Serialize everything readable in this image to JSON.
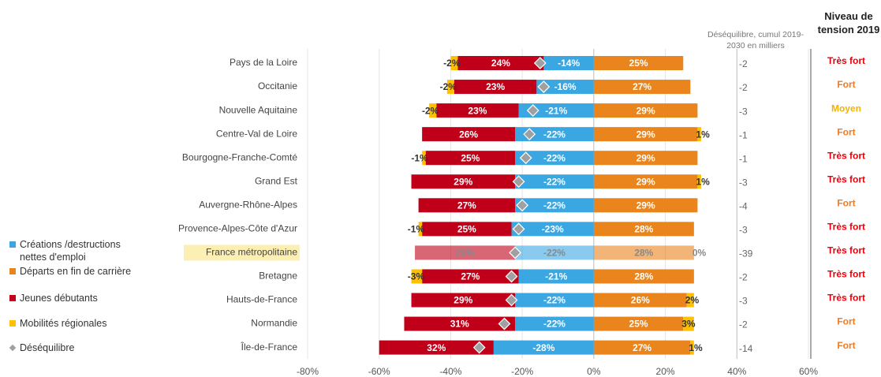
{
  "chart_data": {
    "type": "bar",
    "orientation": "horizontal",
    "stacked": true,
    "categories": [
      "Pays de la Loire",
      "Occitanie",
      "Nouvelle Aquitaine",
      "Centre-Val de Loire",
      "Bourgogne-Franche-Comté",
      "Grand Est",
      "Auvergne-Rhône-Alpes",
      "Provence-Alpes-Côte d'Azur",
      "France métropolitaine",
      "Bretagne",
      "Hauts-de-France",
      "Normandie",
      "Île-de-France"
    ],
    "highlight_index": 8,
    "series": [
      {
        "name": "Créations /destructions nettes d'emploi",
        "color": "#3aa6e2",
        "values": [
          -14,
          -16,
          -21,
          -22,
          -22,
          -22,
          -22,
          -23,
          -22,
          -21,
          -22,
          -22,
          -28
        ],
        "value_labels": [
          "-14%",
          "-16%",
          "-21%",
          "-22%",
          "-22%",
          "-22%",
          "-22%",
          "-23%",
          "-22%",
          "-21%",
          "-22%",
          "-22%",
          "-28%"
        ]
      },
      {
        "name": "Départs en fin de carrière",
        "color": "#ea841c",
        "values": [
          25,
          27,
          29,
          29,
          29,
          29,
          29,
          28,
          28,
          28,
          26,
          25,
          27
        ],
        "value_labels": [
          "25%",
          "27%",
          "29%",
          "29%",
          "29%",
          "29%",
          "29%",
          "28%",
          "28%",
          "28%",
          "26%",
          "25%",
          "27%"
        ]
      },
      {
        "name": "Jeunes débutants",
        "color": "#c00018",
        "values": [
          -24,
          -23,
          -23,
          -26,
          -25,
          -29,
          -27,
          -25,
          -28,
          -27,
          -29,
          -31,
          -32
        ],
        "value_labels": [
          "24%",
          "23%",
          "23%",
          "26%",
          "25%",
          "29%",
          "27%",
          "25%",
          "28%",
          "27%",
          "29%",
          "31%",
          "32%"
        ]
      },
      {
        "name": "Mobilités régionales",
        "color": "#ffc000",
        "values": [
          -2,
          -2,
          -2,
          1,
          -1,
          1,
          null,
          -1,
          0,
          -3,
          2,
          3,
          1
        ],
        "value_labels": [
          "-2%",
          "-2%",
          "-2%",
          "1%",
          "-1%",
          "1%",
          null,
          "-1%",
          "0%",
          "-3%",
          "2%",
          "3%",
          "1%"
        ]
      },
      {
        "name": "Déséquilibre",
        "type": "marker",
        "color": "#a0a0a0",
        "values": [
          -15,
          -14,
          -17,
          -18,
          -19,
          -21,
          -20,
          -21,
          -22,
          -23,
          -23,
          -25,
          -32
        ]
      }
    ],
    "xlim": [
      -80,
      60
    ],
    "xticks": [
      {
        "value": -80,
        "label": "-80%"
      },
      {
        "value": -60,
        "label": "-60%"
      },
      {
        "value": -40,
        "label": "-40%"
      },
      {
        "value": -20,
        "label": "-20%"
      },
      {
        "value": 0,
        "label": "0%"
      },
      {
        "value": 20,
        "label": "20%"
      },
      {
        "value": 40,
        "label": "40%"
      },
      {
        "value": 60,
        "label": "60%"
      }
    ],
    "grid": true,
    "cumul_title": "Déséquilibre, cumul 2019-2030 en milliers",
    "cumul": [
      -2,
      -2,
      -3,
      -1,
      -1,
      -3,
      -4,
      -3,
      -39,
      -2,
      -3,
      -2,
      -14
    ],
    "tension_title": "Niveau de tension 2019",
    "tension": [
      "Très fort",
      "Fort",
      "Moyen",
      "Fort",
      "Très fort",
      "Très fort",
      "Fort",
      "Très fort",
      "Très fort",
      "Très fort",
      "Très fort",
      "Fort",
      "Fort"
    ],
    "tension_colors": {
      "Très fort": "#e8000b",
      "Fort": "#f07a22",
      "Moyen": "#f2b200"
    }
  }
}
